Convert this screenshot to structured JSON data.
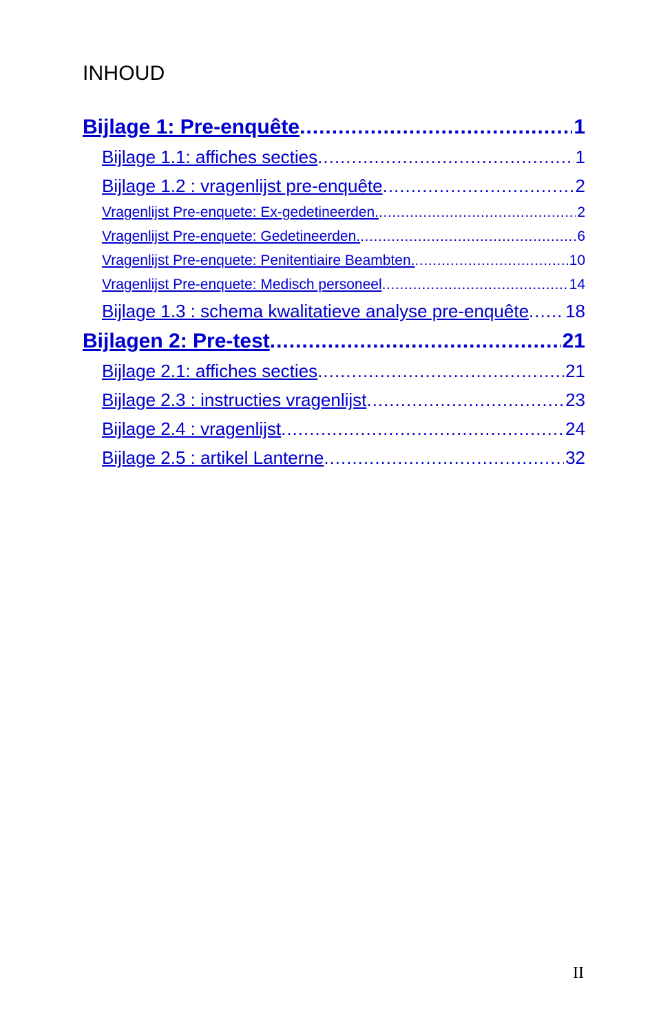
{
  "title": "INHOUD",
  "colors": {
    "link": "#0000cc",
    "text": "#000000",
    "background": "#ffffff"
  },
  "toc": [
    {
      "level": "h1",
      "label": "Bijlage 1: Pre-enquête",
      "page": "1",
      "interactable": true
    },
    {
      "level": "h2",
      "label": "Bijlage 1.1: affiches secties",
      "page": "1",
      "interactable": true
    },
    {
      "level": "h2",
      "label": "Bijlage 1.2 : vragenlijst pre-enquête",
      "page": "2",
      "interactable": true
    },
    {
      "level": "h3",
      "label": "Vragenlijst Pre-enquete: Ex-gedetineerden.",
      "page": "2",
      "interactable": true
    },
    {
      "level": "h3",
      "label": "Vragenlijst Pre-enquete: Gedetineerden.",
      "page": "6",
      "interactable": true
    },
    {
      "level": "h3",
      "label": "Vragenlijst Pre-enquete: Penitentiaire Beambten.",
      "page": "10",
      "interactable": true
    },
    {
      "level": "h3",
      "label": "Vragenlijst Pre-enquete: Medisch personeel",
      "page": "14",
      "interactable": true
    },
    {
      "level": "h2",
      "label": "Bijlage 1.3 : schema kwalitatieve analyse pre-enquête",
      "page": "18",
      "interactable": true
    },
    {
      "level": "h1",
      "label": "Bijlagen 2: Pre-test",
      "page": "21",
      "interactable": true
    },
    {
      "level": "h2",
      "label": "Bijlage 2.1: affiches secties",
      "page": "21",
      "interactable": true
    },
    {
      "level": "h2",
      "label": "Bijlage 2.3 : instructies vragenlijst",
      "page": "23",
      "interactable": true
    },
    {
      "level": "h2",
      "label": "Bijlage 2.4 : vragenlijst",
      "page": "24",
      "interactable": true
    },
    {
      "level": "h2",
      "label": "Bijlage 2.5 : artikel Lanterne",
      "page": "32",
      "interactable": true
    }
  ],
  "footer_page": "II"
}
